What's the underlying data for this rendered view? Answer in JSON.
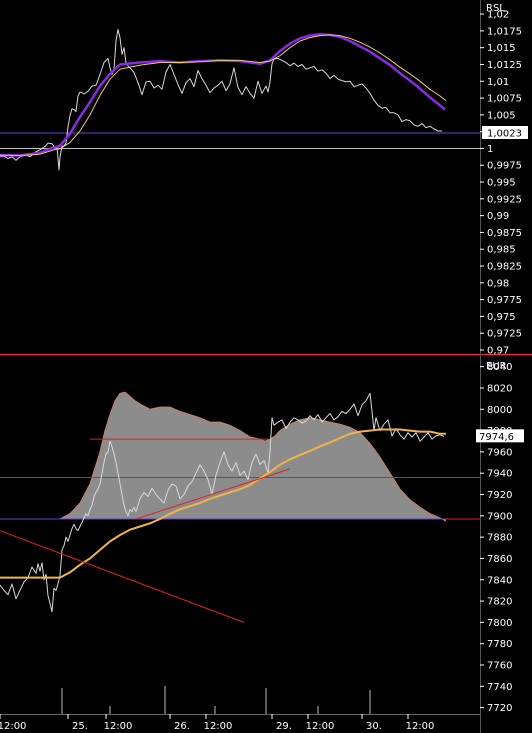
{
  "colors": {
    "background": "#000000",
    "axis_text": "#ffffff",
    "price_line": "#d8d8d8",
    "area_fill": "#8c8c8c",
    "area_edge": "#c8826a",
    "ma_orange": "#f0b44a",
    "ma_purple": "#8a2be2",
    "ma_thin": "#e8c87a",
    "red_line": "#e02020",
    "separator": "#ff3030",
    "ref_purple": "#6a3ddb",
    "ref_grey": "#c0c0c0"
  },
  "chart_data": [
    {
      "type": "line",
      "title": "RSL",
      "y_tick_labels": [
        "1,02",
        "1,0175",
        "1,015",
        "1,0125",
        "1,01",
        "1,0075",
        "1,005",
        "1,0025",
        "1",
        "0,9975",
        "0,995",
        "0,9925",
        "0,99",
        "0,9875",
        "0,985",
        "0,9825",
        "0,98",
        "0,9775",
        "0,975",
        "0,9725",
        "0,97"
      ],
      "ylim": [
        0.97,
        1.0215
      ],
      "current_value_label": "1,0023",
      "current_value": 1.0023,
      "reference_levels": [
        1.0023,
        1.0
      ],
      "series": [
        {
          "role": "rsl-price",
          "x": [
            0,
            5,
            8,
            12,
            16,
            20,
            26,
            30,
            36,
            40,
            45,
            48,
            52,
            55,
            57,
            58,
            59,
            60,
            62,
            64,
            66,
            68,
            70,
            72,
            74,
            76,
            78,
            80,
            82,
            84,
            88,
            92,
            96,
            100,
            104,
            108,
            110,
            112,
            114,
            116,
            118,
            120,
            122,
            124,
            126,
            128,
            130,
            134,
            138,
            142,
            146,
            150,
            154,
            158,
            162,
            166,
            170,
            174,
            178,
            182,
            186,
            190,
            194,
            198,
            202,
            206,
            210,
            214,
            218,
            222,
            226,
            230,
            234,
            238,
            242,
            246,
            250,
            254,
            258,
            262,
            266,
            268,
            270,
            272,
            274,
            278,
            282,
            286,
            290,
            294,
            298,
            302,
            306,
            310,
            314,
            318,
            322,
            326,
            330,
            334,
            338,
            342,
            346,
            350,
            354,
            358,
            362,
            366,
            370,
            374,
            378,
            382,
            386,
            390,
            394,
            398,
            402,
            406,
            410,
            414,
            418,
            422,
            426,
            430,
            434,
            438,
            442
          ],
          "y": [
            0.99875,
            0.9988,
            0.9985,
            0.99875,
            0.99825,
            0.99875,
            0.999,
            0.99875,
            0.9995,
            0.9998,
            1.0003,
            1.0008,
            1.0007,
            1.0001,
            1.0003,
            0.9985,
            0.9968,
            0.99875,
            1.0003,
            1.0004,
            1.0008,
            1.0032,
            1.0049,
            1.0059,
            1.0058,
            1.0055,
            1.0078,
            1.0084,
            1.0083,
            1.0081,
            1.0085,
            1.0093,
            1.0094,
            1.011,
            1.0128,
            1.0134,
            1.012,
            1.011,
            1.0118,
            1.016,
            1.0177,
            1.0165,
            1.014,
            1.015,
            1.0128,
            1.0123,
            1.012,
            1.0113,
            1.0098,
            1.008,
            1.0099,
            1.01,
            1.009,
            1.0094,
            1.0088,
            1.0114,
            1.0125,
            1.011,
            1.0095,
            1.0082,
            1.0098,
            1.0104,
            1.0092,
            1.0116,
            1.0104,
            1.0094,
            1.0083,
            1.009,
            1.0094,
            1.01,
            1.0086,
            1.0096,
            1.012,
            1.0091,
            1.008,
            1.0092,
            1.0082,
            1.0075,
            1.01,
            1.0082,
            1.0093,
            1.0084,
            1.0099,
            1.0126,
            1.0133,
            1.0134,
            1.0131,
            1.0128,
            1.0123,
            1.0127,
            1.0122,
            1.0125,
            1.0118,
            1.012,
            1.0122,
            1.0115,
            1.0117,
            1.0112,
            1.0104,
            1.0109,
            1.0103,
            1.0101,
            1.0099,
            1.01,
            1.0092,
            1.0094,
            1.0096,
            1.009,
            1.0082,
            1.0072,
            1.0064,
            1.006,
            1.0061,
            1.0053,
            1.0053,
            1.005,
            1.004,
            1.0043,
            1.0041,
            1.0035,
            1.0033,
            1.0037,
            1.0031,
            1.0033,
            1.0029,
            1.0026,
            1.0026
          ]
        },
        {
          "role": "rsl-ma-purple",
          "x": [
            0,
            20,
            40,
            50,
            60,
            70,
            80,
            90,
            100,
            110,
            120,
            140,
            160,
            180,
            200,
            220,
            240,
            260,
            270,
            280,
            290,
            300,
            310,
            320,
            330,
            340,
            350,
            360,
            370,
            380,
            390,
            400,
            410,
            420,
            430,
            440,
            445
          ],
          "y": [
            0.999,
            0.99895,
            0.99935,
            0.99995,
            1.0004,
            1.0022,
            1.0047,
            1.0069,
            1.0093,
            1.0111,
            1.0125,
            1.0128,
            1.013,
            1.0128,
            1.013,
            1.0131,
            1.013,
            1.0126,
            1.0131,
            1.0145,
            1.0156,
            1.0164,
            1.0168,
            1.017,
            1.0169,
            1.0166,
            1.016,
            1.0152,
            1.0144,
            1.0134,
            1.0124,
            1.0112,
            1.0101,
            1.0089,
            1.0076,
            1.0064,
            1.0058
          ]
        },
        {
          "role": "rsl-ma-thin",
          "x": [
            0,
            20,
            40,
            55,
            60,
            70,
            80,
            90,
            100,
            110,
            120,
            140,
            160,
            180,
            200,
            220,
            240,
            260,
            270,
            280,
            290,
            300,
            310,
            320,
            330,
            340,
            350,
            360,
            370,
            380,
            390,
            400,
            410,
            420,
            430,
            440,
            446
          ],
          "y": [
            0.999,
            0.99895,
            0.99915,
            0.99985,
            0.99995,
            1.0009,
            1.0026,
            1.005,
            1.0079,
            1.0103,
            1.0118,
            1.0124,
            1.0128,
            1.0128,
            1.0129,
            1.0131,
            1.0131,
            1.0128,
            1.013,
            1.0138,
            1.015,
            1.016,
            1.0165,
            1.0168,
            1.0169,
            1.0168,
            1.0164,
            1.0158,
            1.0151,
            1.0142,
            1.0132,
            1.0121,
            1.0111,
            1.01,
            1.0088,
            1.0078,
            1.0071
          ]
        }
      ]
    },
    {
      "type": "area",
      "title": "EUR",
      "y_tick_labels": [
        "8040",
        "8020",
        "8000",
        "7980",
        "7960",
        "7940",
        "7920",
        "7900",
        "7880",
        "7860",
        "7840",
        "7820",
        "7800",
        "7780",
        "7760",
        "7740",
        "7720"
      ],
      "ylim": [
        7714,
        8050
      ],
      "current_value_label": "7974,6",
      "current_value": 7974.6,
      "x_tick_labels": [
        "12:00",
        "25.",
        "12:00",
        "26.",
        "12:00",
        "29.",
        "12:00",
        "30.",
        "12:00"
      ],
      "horizontal_levels": [
        7972,
        7936,
        7897
      ],
      "series": [
        {
          "role": "price",
          "x": [
            0,
            4,
            8,
            12,
            16,
            20,
            24,
            28,
            32,
            36,
            38,
            40,
            42,
            44,
            46,
            48,
            50,
            52,
            54,
            56,
            58,
            60,
            62,
            64,
            66,
            68,
            70,
            72,
            74,
            76,
            78,
            80,
            82,
            84,
            86,
            88,
            90,
            92,
            94,
            96,
            98,
            100,
            102,
            104,
            106,
            108,
            110,
            112,
            114,
            116,
            118,
            120,
            122,
            124,
            126,
            128,
            130,
            132,
            134,
            136,
            140,
            144,
            148,
            152,
            156,
            160,
            164,
            168,
            172,
            176,
            180,
            184,
            188,
            192,
            196,
            200,
            204,
            208,
            212,
            216,
            220,
            224,
            228,
            232,
            236,
            240,
            244,
            248,
            252,
            256,
            260,
            264,
            268,
            270,
            272,
            274,
            278,
            282,
            286,
            290,
            294,
            298,
            302,
            306,
            310,
            314,
            318,
            322,
            326,
            330,
            334,
            338,
            342,
            346,
            350,
            354,
            358,
            362,
            366,
            370,
            372,
            374,
            376,
            380,
            384,
            388,
            392,
            396,
            400,
            404,
            408,
            412,
            416,
            420,
            424,
            428,
            432,
            436,
            440,
            444
          ],
          "y": [
            7835,
            7830,
            7826,
            7836,
            7822,
            7830,
            7838,
            7842,
            7852,
            7846,
            7855,
            7848,
            7856,
            7840,
            7845,
            7825,
            7818,
            7810,
            7832,
            7830,
            7836,
            7844,
            7868,
            7872,
            7880,
            7876,
            7882,
            7888,
            7892,
            7888,
            7886,
            7890,
            7894,
            7898,
            7902,
            7900,
            7906,
            7910,
            7918,
            7922,
            7925,
            7930,
            7940,
            7950,
            7958,
            7960,
            7970,
            7965,
            7958,
            7950,
            7940,
            7930,
            7920,
            7910,
            7904,
            7900,
            7906,
            7904,
            7908,
            7904,
            7916,
            7922,
            7918,
            7926,
            7920,
            7916,
            7912,
            7924,
            7930,
            7928,
            7916,
            7920,
            7928,
            7932,
            7940,
            7948,
            7942,
            7934,
            7920,
            7938,
            7950,
            7960,
            7948,
            7942,
            7950,
            7938,
            7942,
            7934,
            7950,
            7958,
            7948,
            7952,
            7940,
            7960,
            7992,
            7985,
            7988,
            7990,
            7982,
            7988,
            7992,
            7990,
            7987,
            7989,
            7994,
            7990,
            7995,
            7988,
            7992,
            7996,
            7990,
            7993,
            7998,
            7996,
            8000,
            8005,
            7994,
            8004,
            8008,
            8015,
            7998,
            7980,
            7992,
            7980,
            7986,
            7990,
            7975,
            7982,
            7976,
            7972,
            7978,
            7974,
            7978,
            7970,
            7974,
            7978,
            7972,
            7975,
            7976,
            7974.6
          ]
        },
        {
          "role": "volume-envelope",
          "x": [
            0,
            60,
            70,
            80,
            90,
            100,
            105,
            110,
            115,
            120,
            125,
            130,
            135,
            140,
            150,
            160,
            170,
            180,
            190,
            200,
            210,
            220,
            230,
            240,
            250,
            260,
            265,
            270,
            275,
            280,
            290,
            300,
            310,
            320,
            330,
            340,
            350,
            360,
            370,
            380,
            390,
            400,
            410,
            420,
            430,
            440,
            446
          ],
          "y": [
            7897,
            7897,
            7902,
            7912,
            7930,
            7960,
            7980,
            7995,
            8008,
            8015,
            8016,
            8012,
            8008,
            8005,
            8000,
            8002,
            8002,
            7998,
            7995,
            7992,
            7988,
            7988,
            7985,
            7980,
            7974,
            7972,
            7970,
            7972,
            7975,
            7980,
            7986,
            7990,
            7992,
            7990,
            7988,
            7986,
            7983,
            7978,
            7968,
            7955,
            7940,
            7925,
            7915,
            7908,
            7902,
            7898,
            7895
          ]
        },
        {
          "role": "moving-average-orange",
          "x": [
            0,
            20,
            40,
            60,
            70,
            80,
            90,
            100,
            110,
            120,
            130,
            140,
            150,
            160,
            170,
            180,
            190,
            200,
            210,
            220,
            230,
            240,
            250,
            260,
            270,
            280,
            290,
            300,
            310,
            320,
            330,
            340,
            350,
            360,
            370,
            380,
            390,
            400,
            410,
            420,
            430,
            440,
            446
          ],
          "y": [
            7842,
            7842,
            7842,
            7842,
            7847,
            7854,
            7860,
            7868,
            7876,
            7882,
            7887,
            7890,
            7893,
            7897,
            7902,
            7906,
            7909,
            7912,
            7916,
            7919,
            7922,
            7925,
            7929,
            7935,
            7941,
            7948,
            7953,
            7957,
            7961,
            7965,
            7969,
            7973,
            7977,
            7979,
            7980,
            7981,
            7981,
            7981,
            7980,
            7979,
            7979,
            7977,
            7977
          ]
        },
        {
          "role": "support-line-red",
          "x": [
            0,
            244
          ],
          "y": [
            7886,
            7800
          ]
        },
        {
          "role": "trend-line-red",
          "x": [
            136,
            290
          ],
          "y": [
            7897,
            7944
          ]
        }
      ]
    }
  ]
}
